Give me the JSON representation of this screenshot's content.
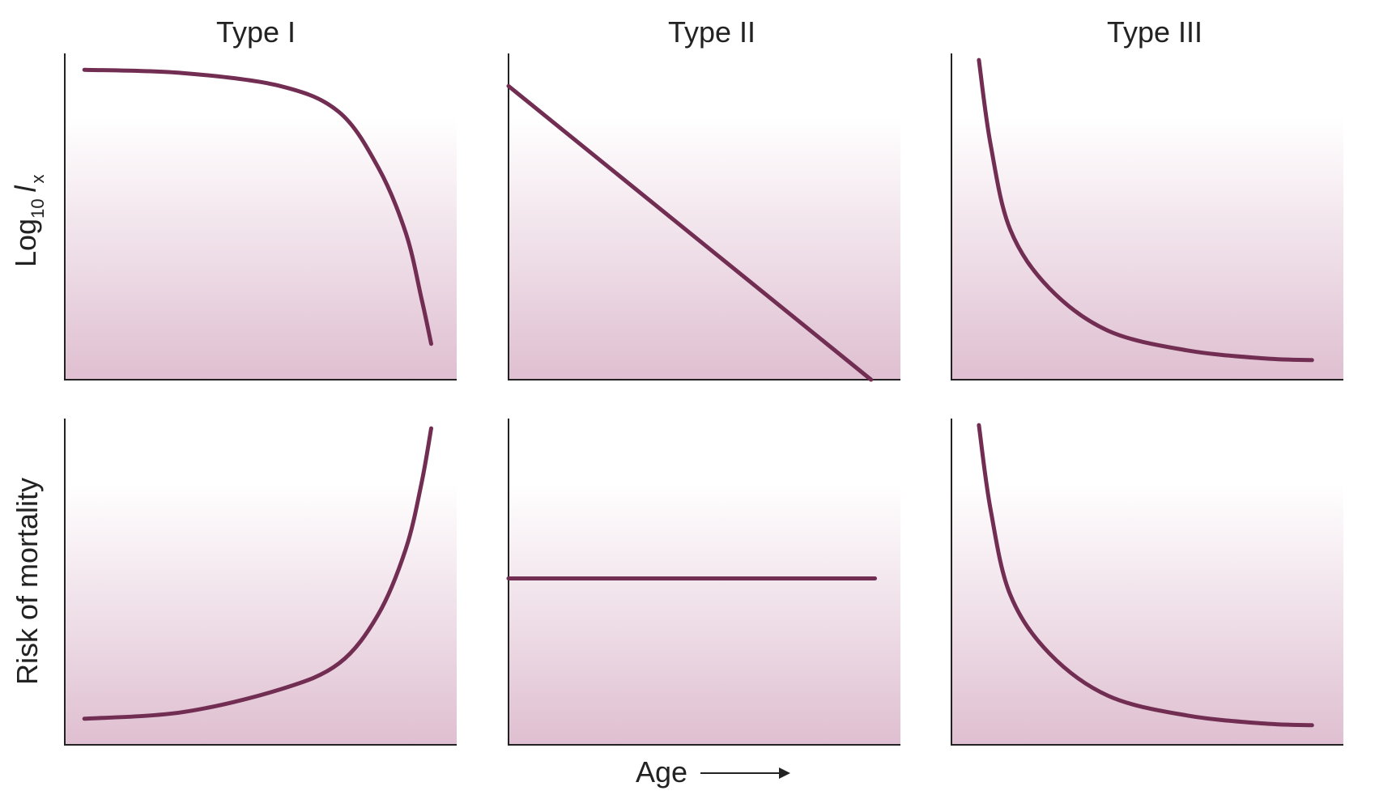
{
  "chart_data": {
    "type": "line",
    "title": "",
    "column_titles": [
      "Type I",
      "Type II",
      "Type III"
    ],
    "row_labels": {
      "top": {
        "base": "Log",
        "subscript": "10",
        "variable": "l",
        "variable_subscript": "x"
      },
      "bottom": "Risk of mortality"
    },
    "xlabel": "Age",
    "colors": {
      "curve": "#722e52",
      "fill_top": "#ffffff",
      "fill_bottom": "#dfbfd1",
      "axis": "#222222"
    },
    "grid": false,
    "legend": "none",
    "axis_range": {
      "x": [
        0,
        1
      ],
      "y": [
        0,
        1
      ]
    },
    "panels": [
      {
        "row": "top",
        "column": "Type I",
        "x": [
          0.05,
          0.3,
          0.55,
          0.7,
          0.8,
          0.87,
          0.91,
          0.935
        ],
        "y": [
          0.95,
          0.94,
          0.9,
          0.82,
          0.65,
          0.45,
          0.25,
          0.11
        ]
      },
      {
        "row": "top",
        "column": "Type II",
        "x": [
          0.0,
          0.925
        ],
        "y": [
          0.9,
          0.0
        ]
      },
      {
        "row": "top",
        "column": "Type III",
        "x": [
          0.07,
          0.1,
          0.15,
          0.25,
          0.4,
          0.6,
          0.8,
          0.92
        ],
        "y": [
          0.98,
          0.72,
          0.46,
          0.28,
          0.15,
          0.09,
          0.065,
          0.06
        ]
      },
      {
        "row": "bottom",
        "column": "Type I",
        "x": [
          0.05,
          0.3,
          0.55,
          0.7,
          0.8,
          0.87,
          0.91,
          0.935
        ],
        "y": [
          0.08,
          0.1,
          0.17,
          0.25,
          0.4,
          0.6,
          0.8,
          0.97
        ]
      },
      {
        "row": "bottom",
        "column": "Type II",
        "x": [
          0.0,
          0.935
        ],
        "y": [
          0.51,
          0.51
        ]
      },
      {
        "row": "bottom",
        "column": "Type III",
        "x": [
          0.07,
          0.1,
          0.15,
          0.25,
          0.4,
          0.6,
          0.8,
          0.92
        ],
        "y": [
          0.98,
          0.72,
          0.46,
          0.28,
          0.15,
          0.09,
          0.065,
          0.06
        ]
      }
    ]
  }
}
